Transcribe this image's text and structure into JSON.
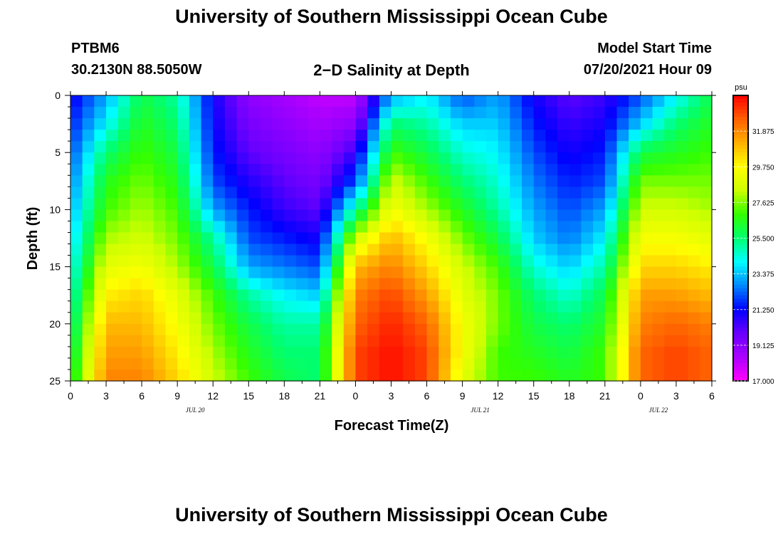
{
  "header": {
    "title": "University of Southern Mississippi Ocean Cube",
    "station_id": "PTBM6",
    "station_coords": "30.2130N  88.5050W",
    "subtitle": "2−D Salinity at Depth",
    "model_start_label": "Model Start Time",
    "model_start_value": "07/20/2021 Hour 09"
  },
  "footer": {
    "title": "University of Southern Mississippi Ocean Cube"
  },
  "chart_data": {
    "type": "heatmap",
    "title": "2−D Salinity at Depth",
    "xlabel": "Forecast Time(Z)",
    "ylabel": "Depth (ft)",
    "x_tick_labels": [
      "0",
      "3",
      "6",
      "9",
      "12",
      "15",
      "18",
      "21",
      "0",
      "3",
      "6",
      "9",
      "12",
      "15",
      "18",
      "21",
      "0",
      "3",
      "6"
    ],
    "x_date_labels": [
      {
        "label": "JUL 20",
        "after_tick": 3.5
      },
      {
        "label": "JUL 21",
        "after_tick": 11.5
      },
      {
        "label": "JUL 22",
        "after_tick": 16.5
      }
    ],
    "y_ticks": [
      0,
      5,
      10,
      15,
      20,
      25
    ],
    "ylim": [
      25,
      0
    ],
    "y_inverted": true,
    "colorbar": {
      "unit": "psu",
      "min": 17.0,
      "max": 34.0,
      "tick_labels": [
        "31.875",
        "29.750",
        "27.625",
        "25.500",
        "23.375",
        "21.250",
        "19.125",
        "17.000"
      ],
      "tick_values": [
        31.875,
        29.75,
        27.625,
        25.5,
        23.375,
        21.25,
        19.125,
        17.0
      ]
    },
    "colormap": [
      "#ff00ff",
      "#aa00ff",
      "#6a00ff",
      "#0000ff",
      "#0088ff",
      "#00ffff",
      "#00ff70",
      "#33ff00",
      "#ccff00",
      "#ffff00",
      "#ffb000",
      "#ff6000",
      "#ff0000"
    ],
    "x_hours": [
      0,
      3,
      6,
      9,
      12,
      15,
      18,
      21,
      24,
      27,
      30,
      33,
      36,
      39,
      42,
      45,
      48,
      51,
      54
    ],
    "depths": [
      0,
      2.5,
      5,
      7.5,
      10,
      12.5,
      15,
      17.5,
      20,
      22.5,
      25
    ],
    "values": [
      [
        21.0,
        21.5,
        22.0,
        22.5,
        23.0,
        23.5,
        24.0,
        24.5,
        25.0,
        25.5,
        26.0
      ],
      [
        23.0,
        24.0,
        25.5,
        26.5,
        27.0,
        28.0,
        29.0,
        30.0,
        31.0,
        31.5,
        32.0
      ],
      [
        26.0,
        26.5,
        27.0,
        27.5,
        28.0,
        28.5,
        29.5,
        30.5,
        31.0,
        31.5,
        32.0
      ],
      [
        25.0,
        25.5,
        26.0,
        26.5,
        27.0,
        27.5,
        28.0,
        29.0,
        29.5,
        30.0,
        30.5
      ],
      [
        21.0,
        21.2,
        21.5,
        22.0,
        23.0,
        25.0,
        26.0,
        27.0,
        27.5,
        28.0,
        28.5
      ],
      [
        19.0,
        19.5,
        20.0,
        20.8,
        21.5,
        22.0,
        23.0,
        25.0,
        26.0,
        26.5,
        27.0
      ],
      [
        18.5,
        19.0,
        19.5,
        20.0,
        20.5,
        21.5,
        22.5,
        24.0,
        25.0,
        25.5,
        26.0
      ],
      [
        18.0,
        18.5,
        19.0,
        19.5,
        20.0,
        21.0,
        22.0,
        23.5,
        25.0,
        25.5,
        25.5
      ],
      [
        18.0,
        19.0,
        20.5,
        22.0,
        25.0,
        28.5,
        31.0,
        32.0,
        32.5,
        33.0,
        33.0
      ],
      [
        23.0,
        25.5,
        27.0,
        28.5,
        29.5,
        31.0,
        32.0,
        33.0,
        33.5,
        33.8,
        33.8
      ],
      [
        24.0,
        25.0,
        26.0,
        27.0,
        28.0,
        29.5,
        30.5,
        31.5,
        32.5,
        33.0,
        33.0
      ],
      [
        22.0,
        23.5,
        24.5,
        25.5,
        26.5,
        27.5,
        28.5,
        29.0,
        29.5,
        29.5,
        29.0
      ],
      [
        23.0,
        23.5,
        24.0,
        24.5,
        25.0,
        26.0,
        27.0,
        27.5,
        27.5,
        27.0,
        27.0
      ],
      [
        21.0,
        21.5,
        22.0,
        22.5,
        23.0,
        23.5,
        24.5,
        25.5,
        26.0,
        26.5,
        27.0
      ],
      [
        20.0,
        20.5,
        21.0,
        21.5,
        22.0,
        22.5,
        23.5,
        24.5,
        25.5,
        26.0,
        26.5
      ],
      [
        20.5,
        21.0,
        21.5,
        22.0,
        23.0,
        24.0,
        25.0,
        26.0,
        26.5,
        27.0,
        27.0
      ],
      [
        22.0,
        23.5,
        26.0,
        27.5,
        28.5,
        29.5,
        30.5,
        31.5,
        32.0,
        32.5,
        32.5
      ],
      [
        24.0,
        25.5,
        26.5,
        27.5,
        28.5,
        29.5,
        30.5,
        31.5,
        32.5,
        33.0,
        33.0
      ],
      [
        26.0,
        26.5,
        27.0,
        27.5,
        28.0,
        29.0,
        30.0,
        31.0,
        32.0,
        32.5,
        32.5
      ]
    ]
  }
}
